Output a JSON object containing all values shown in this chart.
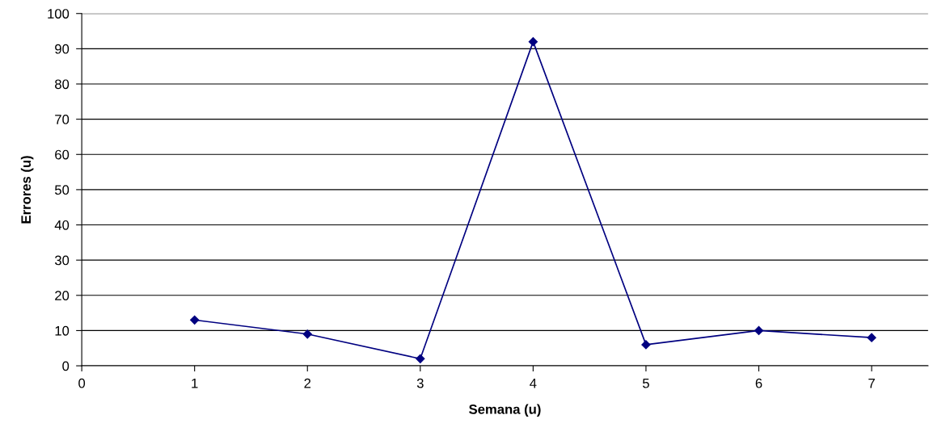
{
  "chart_data": {
    "type": "line",
    "xlabel": "Semana (u)",
    "ylabel": "Errores (u)",
    "x": [
      1,
      2,
      3,
      4,
      5,
      6,
      7
    ],
    "series": [
      {
        "color": "#000080",
        "values": [
          13,
          9,
          2,
          92,
          6,
          10,
          8
        ]
      }
    ],
    "xlim": [
      0,
      7.5
    ],
    "xticks": [
      0,
      1,
      2,
      3,
      4,
      5,
      6,
      7
    ],
    "ylim": [
      0,
      100
    ],
    "yticks": [
      0,
      10,
      20,
      30,
      40,
      50,
      60,
      70,
      80,
      90,
      100
    ],
    "grid": "y",
    "marker": "diamond",
    "line_style": "solid",
    "legend": false
  }
}
